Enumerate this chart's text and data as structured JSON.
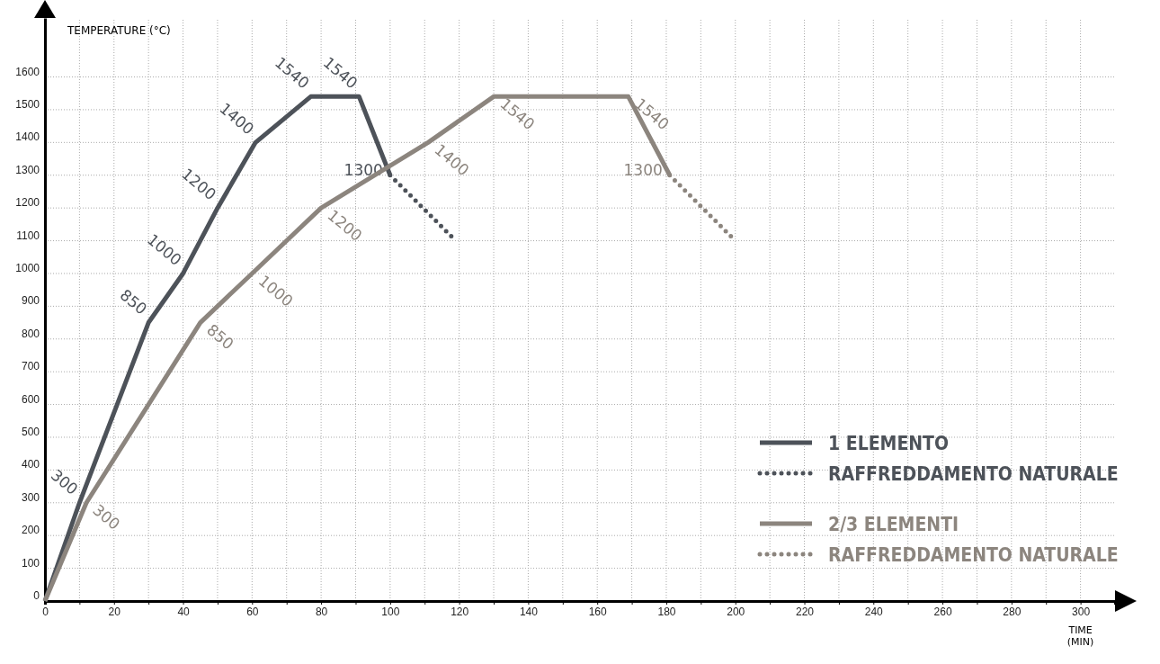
{
  "chart_data": {
    "type": "line",
    "xlabel": "TIME (MIN)",
    "ylabel": "TEMPERATURE (°C)",
    "xlim": [
      0,
      310
    ],
    "ylim": [
      0,
      1780
    ],
    "xticks": [
      0,
      {
        "value": 10,
        "label": null
      },
      20,
      {
        "value": 30,
        "label": null
      },
      40,
      {
        "value": 50,
        "label": null
      },
      60,
      {
        "value": 70,
        "label": null
      },
      80,
      {
        "value": 90,
        "label": null
      },
      100,
      {
        "value": 110,
        "label": null
      },
      120,
      {
        "value": 130,
        "label": null
      },
      140,
      {
        "value": 150,
        "label": null
      },
      160,
      {
        "value": 170,
        "label": null
      },
      180,
      {
        "value": 190,
        "label": null
      },
      200,
      {
        "value": 210,
        "label": null
      },
      220,
      {
        "value": 230,
        "label": null
      },
      240,
      {
        "value": 250,
        "label": null
      },
      260,
      {
        "value": 270,
        "label": null
      },
      280,
      {
        "value": 290,
        "label": null
      },
      300
    ],
    "yticks": [
      0,
      100,
      200,
      300,
      400,
      500,
      600,
      700,
      800,
      900,
      1000,
      1100,
      1200,
      1300,
      1400,
      1500,
      1600
    ],
    "grid": true,
    "legend": "bottom right",
    "marker": "none",
    "series": [
      {
        "name": "1 ELEMENTO",
        "color": "#4d5259",
        "line_style": "solid",
        "x": [
          0,
          10,
          30,
          40,
          50,
          61,
          77,
          91,
          100
        ],
        "values": [
          0,
          300,
          850,
          1000,
          1200,
          1400,
          1540,
          1540,
          1300
        ],
        "value_labels": [
          null,
          "300",
          "850",
          "1000",
          "1200",
          "1400",
          "1540",
          "1540",
          "1300"
        ]
      },
      {
        "name": "RAFFREDDAMENTO NATURALE",
        "color": "#4d5259",
        "line_style": "dotted",
        "x": [
          100,
          119
        ],
        "values": [
          1300,
          1100
        ]
      },
      {
        "name": "2/3 ELEMENTI",
        "color": "#8c857e",
        "line_style": "solid",
        "x": [
          0,
          12,
          45,
          60,
          80,
          111,
          130,
          169,
          181
        ],
        "values": [
          0,
          300,
          850,
          1000,
          1200,
          1400,
          1540,
          1540,
          1300
        ],
        "value_labels": [
          null,
          "300",
          "850",
          "1000",
          "1200",
          "1400",
          "1540",
          "1540",
          "1300"
        ]
      },
      {
        "name": "RAFFREDDAMENTO NATURALE",
        "color": "#8c857e",
        "line_style": "dotted",
        "x": [
          181,
          200
        ],
        "values": [
          1300,
          1100
        ]
      }
    ]
  }
}
